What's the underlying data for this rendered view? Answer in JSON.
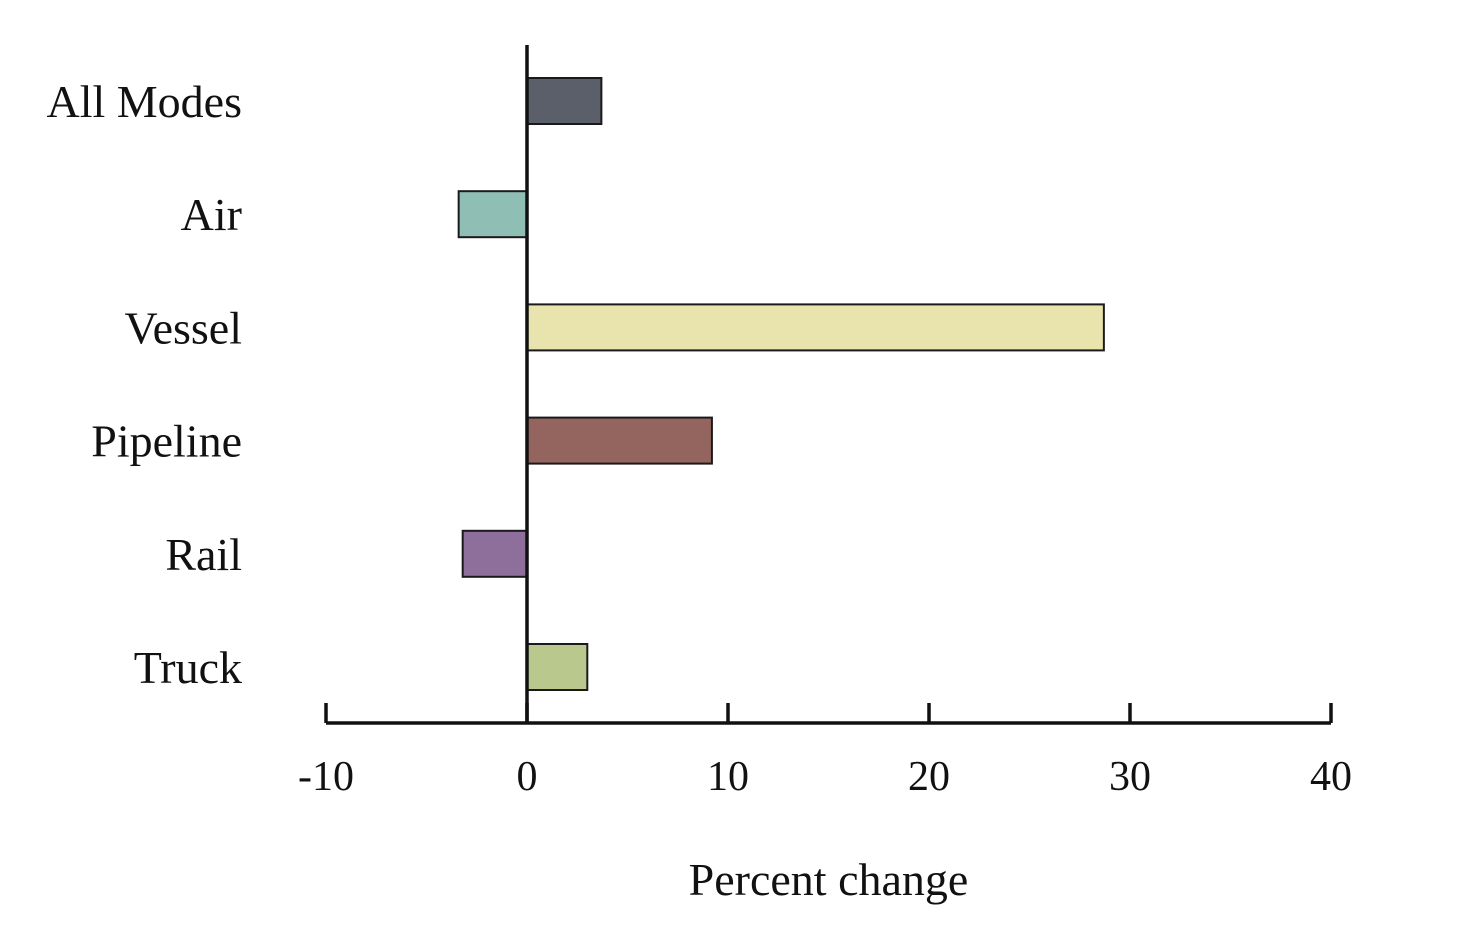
{
  "chart_data": {
    "type": "bar",
    "orientation": "horizontal",
    "categories": [
      "All Modes",
      "Air",
      "Vessel",
      "Pipeline",
      "Rail",
      "Truck"
    ],
    "values": [
      3.7,
      -3.4,
      28.7,
      9.2,
      -3.2,
      3.0
    ],
    "colors": [
      "#5a5f69",
      "#8fbfb4",
      "#e9e4ae",
      "#94645f",
      "#8e6f9b",
      "#b9c98d"
    ],
    "xlabel": "Percent change",
    "ylabel": "",
    "xlim": [
      -10,
      40
    ],
    "xticks": [
      -10,
      0,
      10,
      20,
      30,
      40
    ],
    "xtick_labels": [
      "-10",
      "0",
      "10",
      "20",
      "30",
      "40"
    ],
    "grid": false,
    "legend": "none"
  }
}
